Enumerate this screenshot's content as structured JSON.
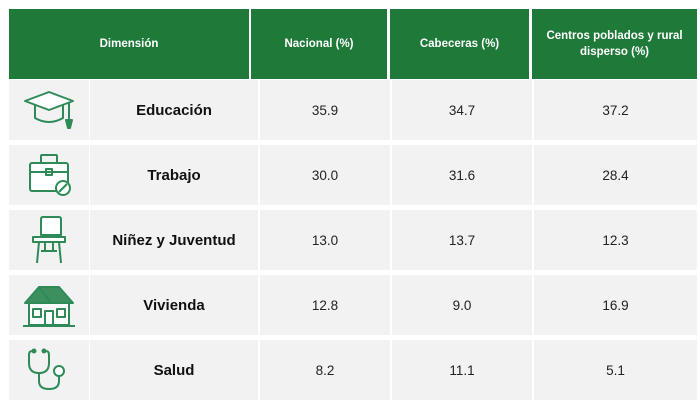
{
  "header": {
    "dimension": "Dimensión",
    "nacional": "Nacional (%)",
    "cabeceras": "Cabeceras (%)",
    "centros": "Centros poblados y rural disperso (%)"
  },
  "colors": {
    "header_bg": "#1f7a3a",
    "icon_stroke": "#2e8b57",
    "row_bg": "#f2f2f2"
  },
  "rows": [
    {
      "icon": "graduation-cap-icon",
      "dimension": "Educación",
      "nacional": "35.9",
      "cabeceras": "34.7",
      "centros": "37.2"
    },
    {
      "icon": "briefcase-icon",
      "dimension": "Trabajo",
      "nacional": "30.0",
      "cabeceras": "31.6",
      "centros": "28.4"
    },
    {
      "icon": "school-desk-icon",
      "dimension": "Niñez y Juventud",
      "nacional": "13.0",
      "cabeceras": "13.7",
      "centros": "12.3"
    },
    {
      "icon": "house-icon",
      "dimension": "Vivienda",
      "nacional": "12.8",
      "cabeceras": "9.0",
      "centros": "16.9"
    },
    {
      "icon": "stethoscope-icon",
      "dimension": "Salud",
      "nacional": "8.2",
      "cabeceras": "11.1",
      "centros": "5.1"
    }
  ]
}
